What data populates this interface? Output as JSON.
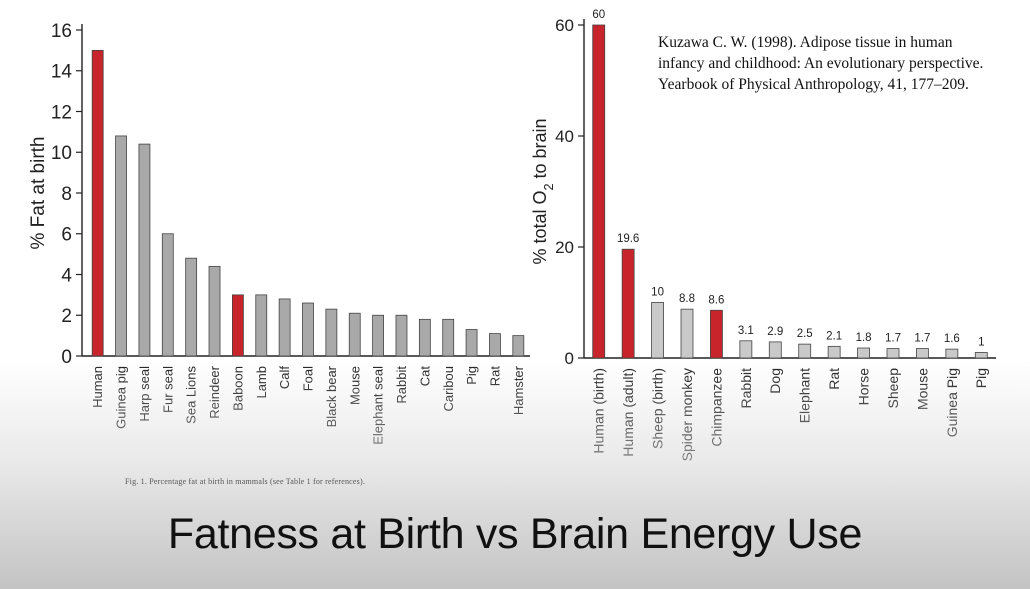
{
  "slide": {
    "title": "Fatness at Birth vs Brain Energy Use",
    "figure_caption": "Fig. 1.   Percentage fat at birth in mammals (see Table 1 for references).",
    "reference_lines": [
      "Kuzawa C. W. (1998). Adipose tissue in human",
      "infancy and childhood: An evolutionary perspective.",
      "Yearbook of Physical Anthropology, 41, 177–209."
    ]
  },
  "colors": {
    "highlight": "#c8242b",
    "grey_bar": "#a9a9a9",
    "light_bar": "#c9c9c9",
    "axis": "#222222"
  },
  "chart_data": [
    {
      "type": "bar",
      "title": "",
      "xlabel": "",
      "ylabel": "% Fat at birth",
      "ylim": [
        0,
        16
      ],
      "yticks": [
        0,
        2,
        4,
        6,
        8,
        10,
        12,
        14,
        16
      ],
      "categories": [
        "Human",
        "Guinea pig",
        "Harp seal",
        "Fur seal",
        "Sea Lions",
        "Reindeer",
        "Baboon",
        "Lamb",
        "Calf",
        "Foal",
        "Black bear",
        "Mouse",
        "Elephant seal",
        "Rabbit",
        "Cat",
        "Caribou",
        "Pig",
        "Rat",
        "Hamster"
      ],
      "values": [
        15,
        10.8,
        10.4,
        6,
        4.8,
        4.4,
        3,
        3,
        2.8,
        2.6,
        2.3,
        2.1,
        2,
        2,
        1.8,
        1.8,
        1.3,
        1.1,
        1
      ],
      "highlighted": [
        "Human",
        "Baboon"
      ],
      "grid": false
    },
    {
      "type": "bar",
      "title": "",
      "xlabel": "",
      "ylabel": "% total O2 to brain",
      "ylim": [
        0,
        60
      ],
      "yticks": [
        0,
        20,
        40,
        60
      ],
      "categories": [
        "Human (birth)",
        "Human (adult)",
        "Sheep (birth)",
        "Spider monkey",
        "Chimpanzee",
        "Rabbit",
        "Dog",
        "Elephant",
        "Rat",
        "Horse",
        "Sheep",
        "Mouse",
        "Guinea Pig",
        "Pig"
      ],
      "values": [
        60,
        19.6,
        10,
        8.8,
        8.6,
        3.1,
        2.9,
        2.5,
        2.1,
        1.8,
        1.7,
        1.7,
        1.6,
        1
      ],
      "data_labels": [
        "60",
        "19.6",
        "10",
        "8.8",
        "8.6",
        "3.1",
        "2.9",
        "2.5",
        "2.1",
        "1.8",
        "1.7",
        "1.7",
        "1.6",
        "1"
      ],
      "highlighted": [
        "Human (birth)",
        "Human (adult)",
        "Chimpanzee"
      ],
      "grid": false
    }
  ]
}
